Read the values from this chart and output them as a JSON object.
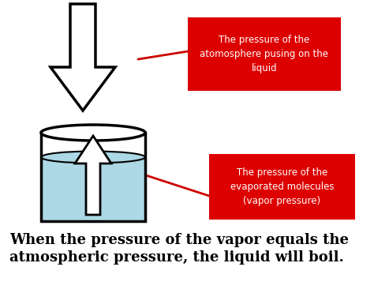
{
  "bg_color": "#ffffff",
  "arrow_down_color": "#ffffff",
  "arrow_down_edge": "#000000",
  "arrow_up_color": "#ffffff",
  "arrow_up_edge": "#000000",
  "beaker_liquid_color": "#add8e6",
  "beaker_edge_color": "#000000",
  "red_box_color": "#dd0000",
  "red_box_text_color": "#ffffff",
  "line_color": "#cc0000",
  "bottom_text_color": "#000000",
  "box1_text": "The pressure of the\natomosphere pusing on the\nliquid",
  "box2_text": "The pressure of the\nevaporated molecules\n(vapor pressure)",
  "bottom_text": "When the pressure of the vapor equals the\natmospheric pressure, the liquid will boil.",
  "figw": 4.74,
  "figh": 3.71,
  "dpi": 100
}
